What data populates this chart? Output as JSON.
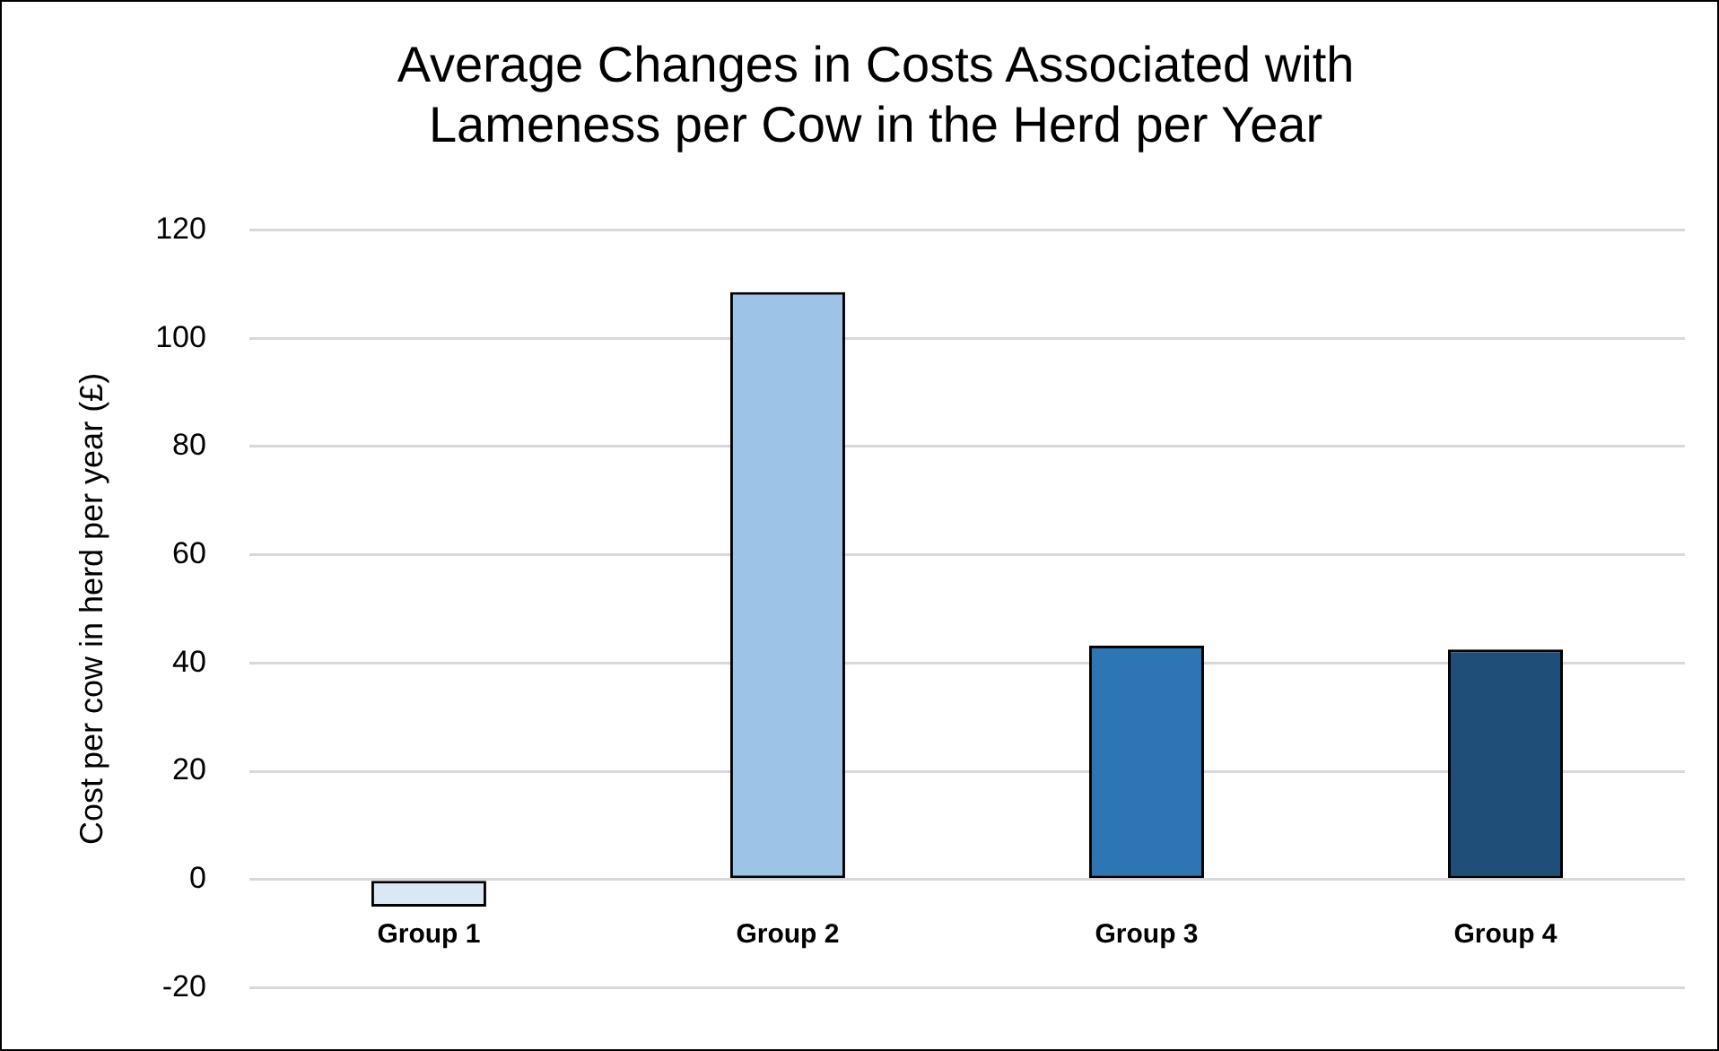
{
  "chart_data": {
    "type": "bar",
    "title": "Average Changes in Costs Associated with Lameness per Cow in the Herd per Year",
    "ylabel": "Cost per cow in herd per year (£)",
    "categories": [
      "Group 1",
      "Group 2",
      "Group 3",
      "Group 4"
    ],
    "values": [
      -5,
      108.5,
      43.2,
      42.5
    ],
    "colors": [
      "#dae8f5",
      "#9dc3e6",
      "#2e75b6",
      "#1f4e79"
    ],
    "ylim": [
      -20,
      120
    ],
    "yticks": [
      -20,
      0,
      20,
      40,
      60,
      80,
      100,
      120
    ],
    "grid": "y",
    "legend": false
  }
}
